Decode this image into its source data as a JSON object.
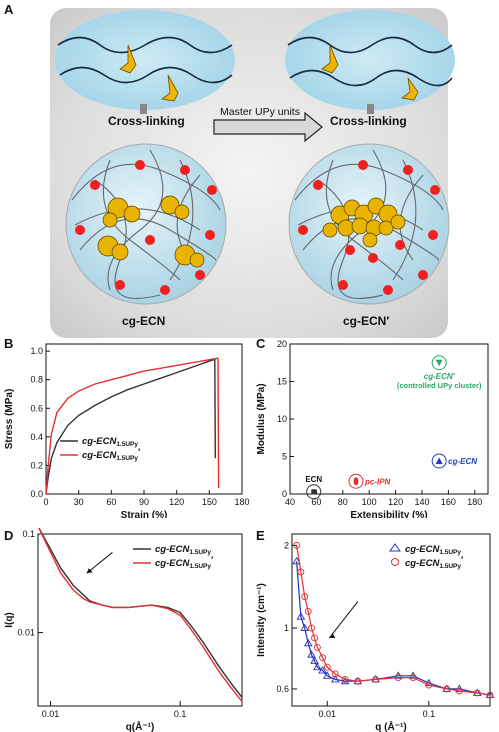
{
  "panelA": {
    "letter": "A",
    "arrow_label": "Master UPy units",
    "left_caption": "Cross-linking",
    "right_caption": "Cross-linking",
    "left_name": "cg-ECN",
    "right_name": "cg-ECN′"
  },
  "chart_data": [
    {
      "panel": "B",
      "type": "line",
      "xlabel": "Strain (%)",
      "ylabel": "Stress (MPa)",
      "xlim": [
        0,
        180
      ],
      "ylim": [
        0,
        1.05
      ],
      "xticks": [
        "0",
        "30",
        "60",
        "90",
        "120",
        "150",
        "180"
      ],
      "yticks": [
        "0.0",
        "0.2",
        "0.4",
        "0.6",
        "0.8",
        "1.0"
      ],
      "legend_position": "middle-center",
      "series": [
        {
          "name": "cg-ECN1.5UPy",
          "label_main": "cg-ECN",
          "label_sub": "1.5UPy",
          "label_prime": "",
          "color": "#333333",
          "x": [
            0,
            2,
            5,
            10,
            20,
            30,
            45,
            60,
            75,
            90,
            105,
            120,
            135,
            150,
            154,
            155,
            155.5
          ],
          "y": [
            0,
            0.12,
            0.25,
            0.36,
            0.48,
            0.55,
            0.62,
            0.68,
            0.73,
            0.77,
            0.81,
            0.85,
            0.89,
            0.93,
            0.94,
            0.94,
            0.25
          ]
        },
        {
          "name": "cg-ECN1.5UPy′",
          "label_main": "cg-ECN",
          "label_sub": "1.5UPy",
          "label_prime": "′",
          "color": "#e53030",
          "x": [
            0,
            2,
            5,
            10,
            20,
            30,
            45,
            60,
            75,
            90,
            105,
            120,
            135,
            150,
            157,
            158,
            158.5
          ],
          "y": [
            0,
            0.2,
            0.42,
            0.57,
            0.67,
            0.72,
            0.77,
            0.8,
            0.83,
            0.86,
            0.88,
            0.9,
            0.92,
            0.94,
            0.95,
            0.95,
            0.04
          ]
        }
      ]
    },
    {
      "panel": "C",
      "type": "scatter",
      "xlabel": "Extensibility (%)",
      "ylabel": "Modulus (MPa)",
      "xlim": [
        40,
        190
      ],
      "ylim": [
        0,
        20
      ],
      "xticks": [
        "40",
        "60",
        "80",
        "100",
        "120",
        "140",
        "160",
        "180"
      ],
      "yticks": [
        "0",
        "5",
        "10",
        "15",
        "20"
      ],
      "points": [
        {
          "label": "ECN",
          "x": 58,
          "y": 0.3,
          "color": "#333333",
          "marker": "square",
          "label_color": "#111111"
        },
        {
          "label": "pc-IPN",
          "x": 90,
          "y": 1.7,
          "color": "#e53030",
          "marker": "blob",
          "label_color": "#e53030"
        },
        {
          "label": "cg-ECN",
          "x": 153,
          "y": 4.4,
          "color": "#1f3fbf",
          "marker": "triangle-up",
          "label_color": "#1f3fbf"
        },
        {
          "label": "cg-ECN′",
          "label2": "(controlled UPy cluster)",
          "x": 153,
          "y": 17.5,
          "color": "#2aa868",
          "marker": "triangle-down",
          "label_color": "#2aa868"
        }
      ]
    },
    {
      "panel": "D",
      "type": "line",
      "xlabel": "q(Å⁻¹)",
      "ylabel": "I(q)",
      "xscale": "log",
      "yscale": "log",
      "xlim": [
        0.008,
        0.3
      ],
      "ylim": [
        0.0018,
        0.1
      ],
      "xticks": [
        "0.01",
        "0.1"
      ],
      "yticks": [
        "0.01",
        "0.1"
      ],
      "legend_position": "top-right",
      "series": [
        {
          "name": "cg-ECN1.5UPy",
          "label_main": "cg-ECN",
          "label_sub": "1.5UPy",
          "label_prime": "",
          "color": "#333333",
          "x": [
            0.008,
            0.01,
            0.012,
            0.015,
            0.018,
            0.02,
            0.025,
            0.03,
            0.04,
            0.05,
            0.06,
            0.08,
            0.1,
            0.12,
            0.15,
            0.2,
            0.25,
            0.3
          ],
          "y": [
            0.12,
            0.07,
            0.045,
            0.03,
            0.024,
            0.021,
            0.019,
            0.018,
            0.018,
            0.0185,
            0.019,
            0.018,
            0.016,
            0.012,
            0.008,
            0.0045,
            0.003,
            0.0022
          ]
        },
        {
          "name": "cg-ECN1.5UPy′",
          "label_main": "cg-ECN",
          "label_sub": "1.5UPy",
          "label_prime": "′",
          "color": "#e53030",
          "x": [
            0.008,
            0.01,
            0.012,
            0.015,
            0.018,
            0.02,
            0.025,
            0.03,
            0.04,
            0.05,
            0.06,
            0.08,
            0.1,
            0.12,
            0.15,
            0.2,
            0.25,
            0.3
          ],
          "y": [
            0.12,
            0.065,
            0.04,
            0.027,
            0.022,
            0.0205,
            0.019,
            0.018,
            0.018,
            0.0185,
            0.019,
            0.0175,
            0.015,
            0.011,
            0.0072,
            0.004,
            0.0027,
            0.002
          ]
        }
      ]
    },
    {
      "panel": "E",
      "type": "scatter",
      "xlabel": "q (Å⁻¹)",
      "ylabel": "Intensity (cm⁻¹)",
      "xscale": "log",
      "yscale": "log",
      "xlim": [
        0.0045,
        0.4
      ],
      "ylim": [
        0.52,
        2.2
      ],
      "xticks": [
        "0.01",
        "0.1"
      ],
      "yticks": [
        "0.6",
        "1",
        "2"
      ],
      "legend_position": "top-right",
      "series": [
        {
          "name": "cg-ECN1.5UPy",
          "label_main": "cg-ECN",
          "label_sub": "1.5UPy",
          "label_prime": "",
          "color": "#2233bb",
          "marker": "triangle",
          "x": [
            0.005,
            0.0055,
            0.006,
            0.0065,
            0.007,
            0.0075,
            0.008,
            0.009,
            0.01,
            0.012,
            0.015,
            0.02,
            0.03,
            0.05,
            0.07,
            0.1,
            0.15,
            0.2,
            0.3,
            0.4
          ],
          "y": [
            1.75,
            1.1,
            1.0,
            0.88,
            0.8,
            0.76,
            0.72,
            0.7,
            0.67,
            0.65,
            0.64,
            0.64,
            0.65,
            0.67,
            0.67,
            0.63,
            0.6,
            0.6,
            0.58,
            0.57
          ]
        },
        {
          "name": "cg-ECN1.5UPy′",
          "label_main": "cg-ECN",
          "label_sub": "1.5UPy",
          "label_prime": "′",
          "color": "#e53030",
          "marker": "circle",
          "x": [
            0.005,
            0.0055,
            0.006,
            0.0065,
            0.007,
            0.0075,
            0.008,
            0.009,
            0.01,
            0.012,
            0.015,
            0.02,
            0.03,
            0.05,
            0.07,
            0.1,
            0.15,
            0.2,
            0.3,
            0.4
          ],
          "y": [
            2.0,
            1.6,
            1.3,
            1.15,
            1.0,
            0.92,
            0.85,
            0.78,
            0.72,
            0.68,
            0.65,
            0.64,
            0.65,
            0.66,
            0.66,
            0.62,
            0.6,
            0.59,
            0.58,
            0.57
          ]
        }
      ]
    }
  ]
}
